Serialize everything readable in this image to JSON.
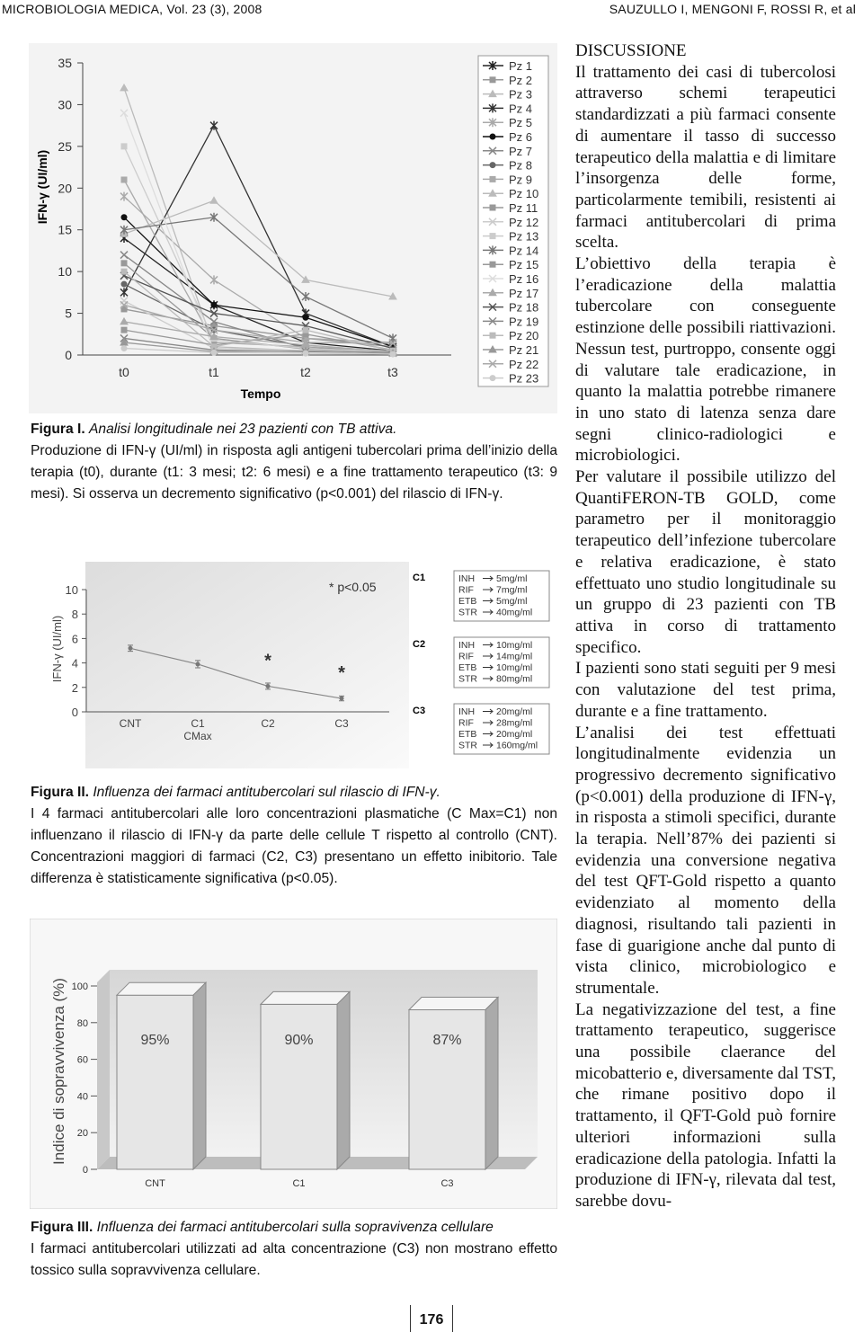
{
  "header": {
    "journal": "MICROBIOLOGIA MEDICA, Vol. 23 (3), 2008",
    "authors": "SAUZULLO I, MENGONI F, ROSSI R, et al"
  },
  "chart_data": [
    {
      "type": "line",
      "ylabel": "IFN-γ (UI/ml)",
      "xlabel": "Tempo",
      "categories": [
        "t0",
        "t1",
        "t2",
        "t3"
      ],
      "ylim": [
        0,
        35
      ],
      "yticks": [
        0,
        5,
        10,
        15,
        20,
        25,
        30,
        35
      ],
      "series": [
        {
          "name": "Pz 1",
          "color": "#222",
          "marker": "star",
          "values": [
            14,
            6,
            1.5,
            0.5
          ]
        },
        {
          "name": "Pz 2",
          "color": "#999",
          "marker": "square",
          "values": [
            5.5,
            3.5,
            2,
            1
          ]
        },
        {
          "name": "Pz 3",
          "color": "#bbb",
          "marker": "triangle",
          "values": [
            32,
            1,
            0.5,
            0.3
          ]
        },
        {
          "name": "Pz 4",
          "color": "#333",
          "marker": "star",
          "values": [
            7.5,
            27.5,
            5,
            1
          ]
        },
        {
          "name": "Pz 5",
          "color": "#aaa",
          "marker": "star",
          "values": [
            19,
            9,
            2,
            1.5
          ]
        },
        {
          "name": "Pz 6",
          "color": "#111",
          "marker": "circle",
          "values": [
            16.5,
            6,
            4.5,
            1
          ]
        },
        {
          "name": "Pz 7",
          "color": "#888",
          "marker": "cross",
          "values": [
            12,
            4,
            0.8,
            0.5
          ]
        },
        {
          "name": "Pz 8",
          "color": "#666",
          "marker": "circle",
          "values": [
            8.5,
            3,
            1,
            0.3
          ]
        },
        {
          "name": "Pz 9",
          "color": "#aaa",
          "marker": "square",
          "values": [
            21,
            1.5,
            1,
            0.5
          ]
        },
        {
          "name": "Pz 10",
          "color": "#bbb",
          "marker": "triangle",
          "values": [
            14.5,
            18.5,
            9,
            7
          ]
        },
        {
          "name": "Pz 11",
          "color": "#999",
          "marker": "square",
          "values": [
            11,
            2,
            0.7,
            0.4
          ]
        },
        {
          "name": "Pz 12",
          "color": "#ccc",
          "marker": "cross",
          "values": [
            6.5,
            0.8,
            0.5,
            0.2
          ]
        },
        {
          "name": "Pz 13",
          "color": "#ccc",
          "marker": "square",
          "values": [
            25,
            1.8,
            0.8,
            0.4
          ]
        },
        {
          "name": "Pz 14",
          "color": "#777",
          "marker": "star",
          "values": [
            15,
            16.5,
            7,
            2
          ]
        },
        {
          "name": "Pz 15",
          "color": "#999",
          "marker": "square",
          "values": [
            3,
            1.2,
            2.5,
            0.6
          ]
        },
        {
          "name": "Pz 16",
          "color": "#ddd",
          "marker": "cross",
          "values": [
            29,
            0.5,
            0.3,
            0.2
          ]
        },
        {
          "name": "Pz 17",
          "color": "#aaa",
          "marker": "triangle",
          "values": [
            4,
            2.2,
            1.2,
            0.4
          ]
        },
        {
          "name": "Pz 18",
          "color": "#555",
          "marker": "cross",
          "values": [
            9.5,
            5,
            3.5,
            0.8
          ]
        },
        {
          "name": "Pz 19",
          "color": "#888",
          "marker": "cross",
          "values": [
            2,
            0.6,
            0.4,
            0.3
          ]
        },
        {
          "name": "Pz 20",
          "color": "#bbb",
          "marker": "square",
          "values": [
            10,
            1,
            3,
            0.5
          ]
        },
        {
          "name": "Pz 21",
          "color": "#999",
          "marker": "triangle",
          "values": [
            1.5,
            0.4,
            0.5,
            0.2
          ]
        },
        {
          "name": "Pz 22",
          "color": "#aaa",
          "marker": "cross",
          "values": [
            6,
            3,
            1.5,
            1.4
          ]
        },
        {
          "name": "Pz 23",
          "color": "#ccc",
          "marker": "circle",
          "values": [
            0.8,
            0.3,
            0.2,
            0.1
          ]
        }
      ]
    },
    {
      "type": "errorline",
      "ylabel": "IFN-γ (UI/ml)",
      "categories": [
        "CNT",
        "C1",
        "C2",
        "C3"
      ],
      "category_sublabels": [
        null,
        "CMax",
        null,
        null
      ],
      "values": [
        5.2,
        3.9,
        2.1,
        1.1
      ],
      "errors": [
        0.25,
        0.3,
        0.25,
        0.2
      ],
      "color": "#888",
      "ylim": [
        0,
        10
      ],
      "yticks": [
        0,
        2,
        4,
        6,
        8,
        10
      ],
      "note": "* p<0.05",
      "annotations": [
        {
          "text": "*",
          "x": "C2"
        },
        {
          "text": "*",
          "x": "C3"
        }
      ],
      "dose_groups": [
        {
          "label": "C1",
          "doses": [
            {
              "drug": "INH",
              "dose": "5mg/ml"
            },
            {
              "drug": "RIF",
              "dose": "7mg/ml"
            },
            {
              "drug": "ETB",
              "dose": "5mg/ml"
            },
            {
              "drug": "STR",
              "dose": "40mg/ml"
            }
          ]
        },
        {
          "label": "C2",
          "doses": [
            {
              "drug": "INH",
              "dose": "10mg/ml"
            },
            {
              "drug": "RIF",
              "dose": "14mg/ml"
            },
            {
              "drug": "ETB",
              "dose": "10mg/ml"
            },
            {
              "drug": "STR",
              "dose": "80mg/ml"
            }
          ]
        },
        {
          "label": "C3",
          "doses": [
            {
              "drug": "INH",
              "dose": "20mg/ml"
            },
            {
              "drug": "RIF",
              "dose": "28mg/ml"
            },
            {
              "drug": "ETB",
              "dose": "20mg/ml"
            },
            {
              "drug": "STR",
              "dose": "160mg/ml"
            }
          ]
        }
      ]
    },
    {
      "type": "bar3d",
      "ylabel": "Indice di sopravvivenza (%)",
      "categories": [
        "CNT",
        "C1",
        "C3"
      ],
      "values": [
        95,
        90,
        87
      ],
      "value_labels": [
        "95%",
        "90%",
        "87%"
      ],
      "color": "#e6e6e6",
      "ylim": [
        0,
        100
      ],
      "yticks": [
        0,
        20,
        40,
        60,
        80,
        100
      ]
    }
  ],
  "captions": [
    {
      "label": "Figura I.",
      "title": "Analisi longitudinale nei 23 pazienti con TB attiva.",
      "text": "Produzione di IFN-γ (UI/ml) in risposta agli antigeni tubercolari prima dell’inizio della terapia (t0), durante (t1: 3 mesi; t2: 6 mesi) e a fine trattamento terapeutico (t3: 9 mesi). Si osserva un decremento significativo (p<0.001) del rilascio di IFN-γ."
    },
    {
      "label": "Figura II.",
      "title": "Influenza dei farmaci antitubercolari sul rilascio di IFN-γ.",
      "text": "I 4 farmaci antitubercolari alle loro concentrazioni plasmatiche (C Max=C1) non influenzano il rilascio di IFN-γ da parte delle cellule T rispetto al controllo (CNT). Concentrazioni maggiori di farmaci (C2, C3) presentano un effetto inibitorio. Tale differenza è statisticamente significativa (p<0.05)."
    },
    {
      "label": "Figura III.",
      "title": "Influenza dei farmaci antitubercolari sulla sopravivenza cellulare",
      "text": "I farmaci antitubercolari utilizzati ad alta concentrazione (C3) non mostrano effetto tossico sulla sopravvivenza cellulare."
    }
  ],
  "discussion": {
    "heading": "DISCUSSIONE",
    "paragraphs": [
      "Il trattamento dei casi di tubercolosi attraverso schemi terapeutici standardizzati a più farmaci consente di aumentare il tasso di successo terapeutico della malattia e di limitare l’insorgenza delle forme, particolarmente temibili, resistenti ai farmaci antitubercolari di prima scelta.",
      "L’obiettivo della terapia è l’eradicazione della malattia tubercolare con conseguente estinzione delle possibili riattivazioni. Nessun test, purtroppo, consente oggi di valutare tale eradicazione, in quanto la malattia potrebbe rimanere in uno stato di latenza senza dare segni clinico-radiologici e microbiologici.",
      "Per valutare il possibile utilizzo del QuantiFERON-TB GOLD, come parametro per il monitoraggio terapeutico dell’infezione tubercolare e relativa eradicazione, è stato effettuato uno studio longitudinale su un gruppo di 23 pazienti con TB attiva in corso di trattamento specifico.",
      "I pazienti sono stati seguiti per 9 mesi con valutazione del test prima, durante e a fine trattamento.",
      "L’analisi dei test effettuati longitudinalmente evidenzia un progressivo decremento significativo (p<0.001) della produzione di IFN-γ, in risposta a stimoli specifici, durante la terapia. Nell’87% dei pazienti si evidenzia una conversione negativa del test QFT-Gold rispetto a quanto evidenziato al momento della diagnosi, risultando tali pazienti in fase di guarigione anche dal punto di vista clinico, microbiologico e strumentale.",
      "La negativizzazione del test, a fine trattamento terapeutico, suggerisce una possibile claerance del micobatterio e, diversamente dal TST, che rimane positivo dopo il trattamento, il QFT-Gold può fornire ulteriori informazioni sulla eradicazione della patologia. Infatti la produzione di IFN-γ, rilevata dal test, sarebbe dovu-"
    ]
  },
  "page_number": "176"
}
